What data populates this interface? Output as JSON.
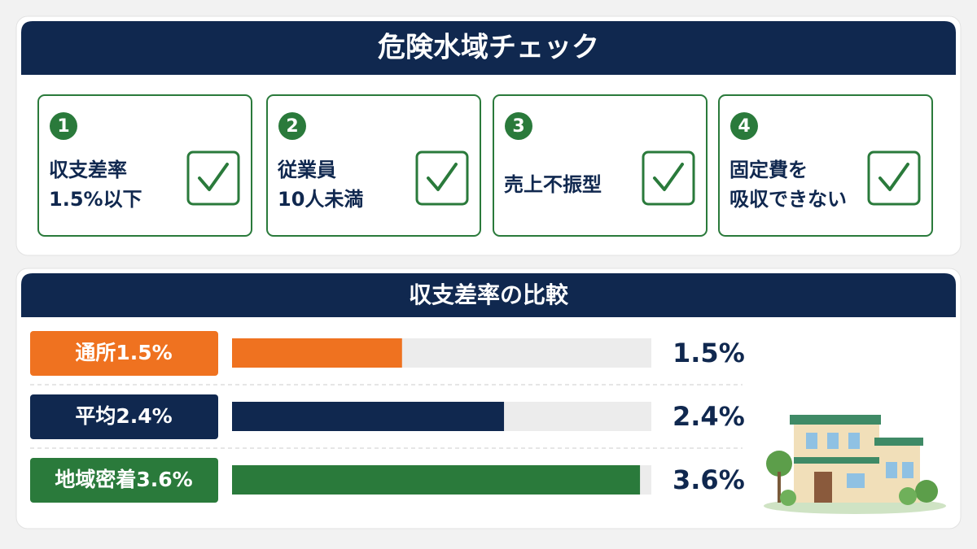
{
  "title": "危険水域チェック",
  "checklist": {
    "items": [
      {
        "number": "1",
        "lines": [
          "収支差率",
          "1.5%以下"
        ]
      },
      {
        "number": "2",
        "lines": [
          "従業員",
          "10人未満"
        ]
      },
      {
        "number": "3",
        "lines": [
          "売上不振型"
        ]
      },
      {
        "number": "4",
        "lines": [
          "固定費を",
          "吸収できない"
        ]
      }
    ]
  },
  "chart_data": {
    "type": "bar",
    "orientation": "horizontal",
    "title": "収支差率の比較",
    "categories": [
      "通所1.5%",
      "平均2.4%",
      "地域密着3.6%"
    ],
    "values": [
      1.5,
      2.4,
      3.6
    ],
    "value_labels": [
      "1.5%",
      "2.4%",
      "3.6%"
    ],
    "colors": [
      "#ef7220",
      "#10284f",
      "#2a7a3b"
    ],
    "xlim": [
      0,
      3.7
    ]
  }
}
